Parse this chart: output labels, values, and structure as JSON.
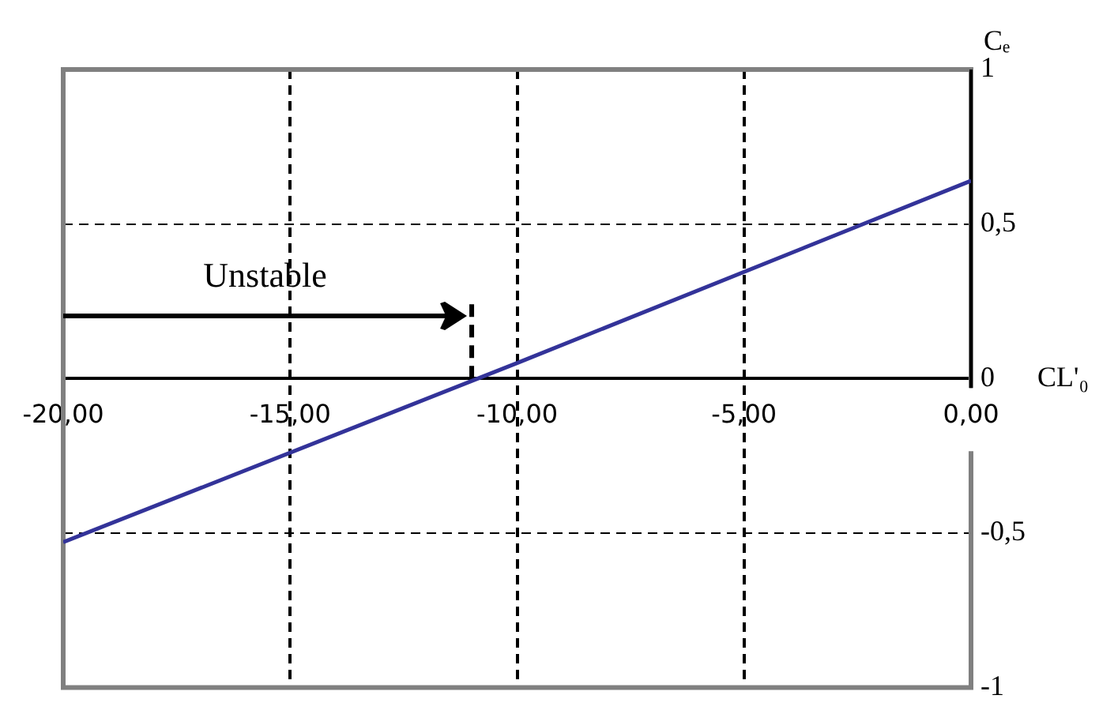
{
  "chart_data": {
    "type": "line",
    "xlabel": "CL'₀",
    "ylabel": "Cₑ",
    "x": [
      -20,
      -10,
      0
    ],
    "series": [
      {
        "color": "#333399",
        "values": [
          -0.53,
          0.05,
          0.64
        ]
      }
    ],
    "xlim": [
      -20,
      0
    ],
    "ylim": [
      -1,
      1
    ],
    "xticks": [
      {
        "value": -20,
        "label": "-20,00"
      },
      {
        "value": -15,
        "label": "-15,00"
      },
      {
        "value": -10,
        "label": "-10,00"
      },
      {
        "value": -5,
        "label": "-5,00"
      },
      {
        "value": 0,
        "label": "0,00"
      }
    ],
    "yticks": [
      -1,
      {
        "value": -0.5,
        "label": "-0,5"
      },
      0,
      {
        "value": 0.5,
        "label": "0,5"
      },
      1
    ],
    "grid": true,
    "legend": false,
    "marker": "none",
    "line_style": "solid",
    "ref_lines": [
      {
        "axis": "x",
        "value": -11,
        "line_style": "dashed",
        "color": "#000000"
      }
    ],
    "annotations": [
      "Unstable"
    ]
  }
}
